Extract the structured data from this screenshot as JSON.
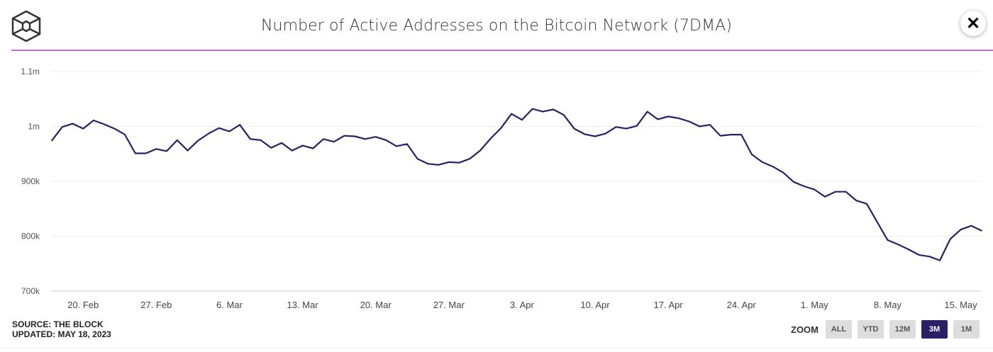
{
  "header": {
    "title": "Number of Active Addresses on the Bitcoin Network (7DMA)",
    "close_label": "✕"
  },
  "footer": {
    "source": "SOURCE: THE BLOCK",
    "updated": "UPDATED: MAY 18, 2023"
  },
  "zoom": {
    "label": "ZOOM",
    "buttons": [
      "ALL",
      "YTD",
      "12M",
      "3M",
      "1M"
    ],
    "active": "3M"
  },
  "colors": {
    "line": "#2b1f66",
    "accent": "#b36be6",
    "active_button": "#2b1f66"
  },
  "chart_data": {
    "type": "line",
    "title": "Number of Active Addresses on the Bitcoin Network (7DMA)",
    "xlabel": "",
    "ylabel": "",
    "x_start": "17 Feb 2023",
    "x_step": "1 day",
    "ylim": [
      700000,
      1100000
    ],
    "y_ticks": [
      {
        "value": 700000,
        "label": "700k"
      },
      {
        "value": 800000,
        "label": "800k"
      },
      {
        "value": 900000,
        "label": "900k"
      },
      {
        "value": 1000000,
        "label": "1m"
      },
      {
        "value": 1100000,
        "label": "1.1m"
      }
    ],
    "x_ticks": [
      {
        "index": 3,
        "label": "20. Feb"
      },
      {
        "index": 10,
        "label": "27. Feb"
      },
      {
        "index": 17,
        "label": "6. Mar"
      },
      {
        "index": 24,
        "label": "13. Mar"
      },
      {
        "index": 31,
        "label": "20. Mar"
      },
      {
        "index": 38,
        "label": "27. Mar"
      },
      {
        "index": 45,
        "label": "3. Apr"
      },
      {
        "index": 52,
        "label": "10. Apr"
      },
      {
        "index": 59,
        "label": "17. Apr"
      },
      {
        "index": 66,
        "label": "24. Apr"
      },
      {
        "index": 73,
        "label": "1. May"
      },
      {
        "index": 80,
        "label": "8. May"
      },
      {
        "index": 87,
        "label": "15. May"
      }
    ],
    "grid": true,
    "series": [
      {
        "name": "Active Addresses (7DMA)",
        "values": [
          974000,
          999000,
          1005000,
          996000,
          1011000,
          1004000,
          996000,
          985000,
          951000,
          951000,
          959000,
          955000,
          975000,
          956000,
          974000,
          987000,
          997000,
          991000,
          1003000,
          977000,
          975000,
          961000,
          970000,
          956000,
          965000,
          960000,
          977000,
          972000,
          983000,
          982000,
          977000,
          981000,
          975000,
          964000,
          968000,
          941000,
          932000,
          930000,
          935000,
          934000,
          941000,
          956000,
          978000,
          997000,
          1023000,
          1012000,
          1032000,
          1027000,
          1031000,
          1021000,
          996000,
          986000,
          982000,
          987000,
          999000,
          996000,
          1001000,
          1027000,
          1013000,
          1018000,
          1015000,
          1009000,
          1000000,
          1003000,
          983000,
          985000,
          985000,
          949000,
          935000,
          927000,
          916000,
          899000,
          891000,
          885000,
          872000,
          881000,
          881000,
          865000,
          859000,
          826000,
          793000,
          785000,
          776000,
          766000,
          763000,
          756000,
          795000,
          812000,
          819000,
          810000
        ]
      }
    ]
  }
}
